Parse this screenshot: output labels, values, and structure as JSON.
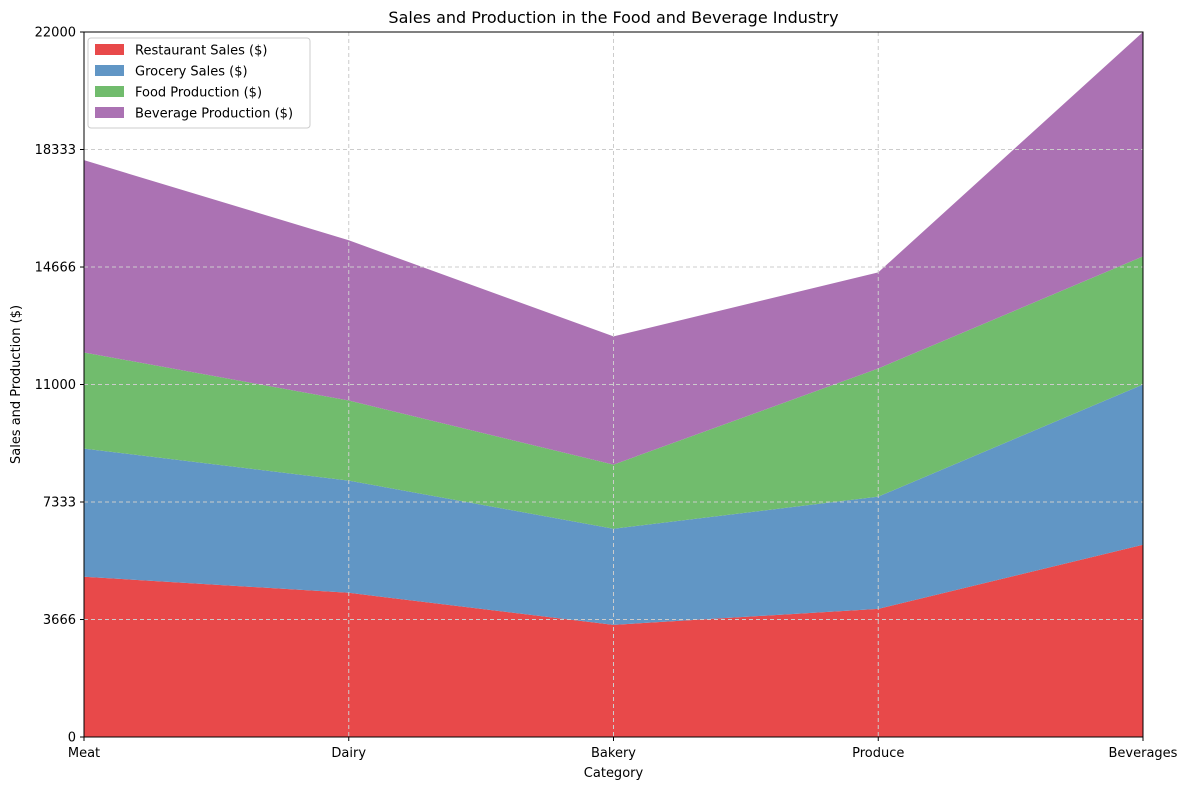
{
  "chart_data": {
    "type": "area",
    "stacked": true,
    "title": "Sales and Production in the Food and Beverage Industry",
    "xlabel": "Category",
    "ylabel": "Sales and Production ($)",
    "categories": [
      "Meat",
      "Dairy",
      "Bakery",
      "Produce",
      "Beverages"
    ],
    "ylim": [
      0,
      22000
    ],
    "yticks": [
      "0",
      "3666",
      "7333",
      "11000",
      "14666",
      "18333",
      "22000"
    ],
    "series": [
      {
        "name": "Restaurant Sales ($)",
        "color": "#e8494a",
        "values": [
          5000,
          4500,
          3500,
          4000,
          6000
        ]
      },
      {
        "name": "Grocery Sales ($)",
        "color": "#6196c5",
        "values": [
          4000,
          3500,
          3000,
          3500,
          5000
        ]
      },
      {
        "name": "Food Production ($)",
        "color": "#71bc6d",
        "values": [
          3000,
          2500,
          2000,
          4000,
          4000
        ]
      },
      {
        "name": "Beverage Production ($)",
        "color": "#ab72b3",
        "values": [
          6000,
          5000,
          4000,
          3000,
          7000
        ]
      }
    ],
    "grid": true,
    "legend_position": "top-left"
  }
}
